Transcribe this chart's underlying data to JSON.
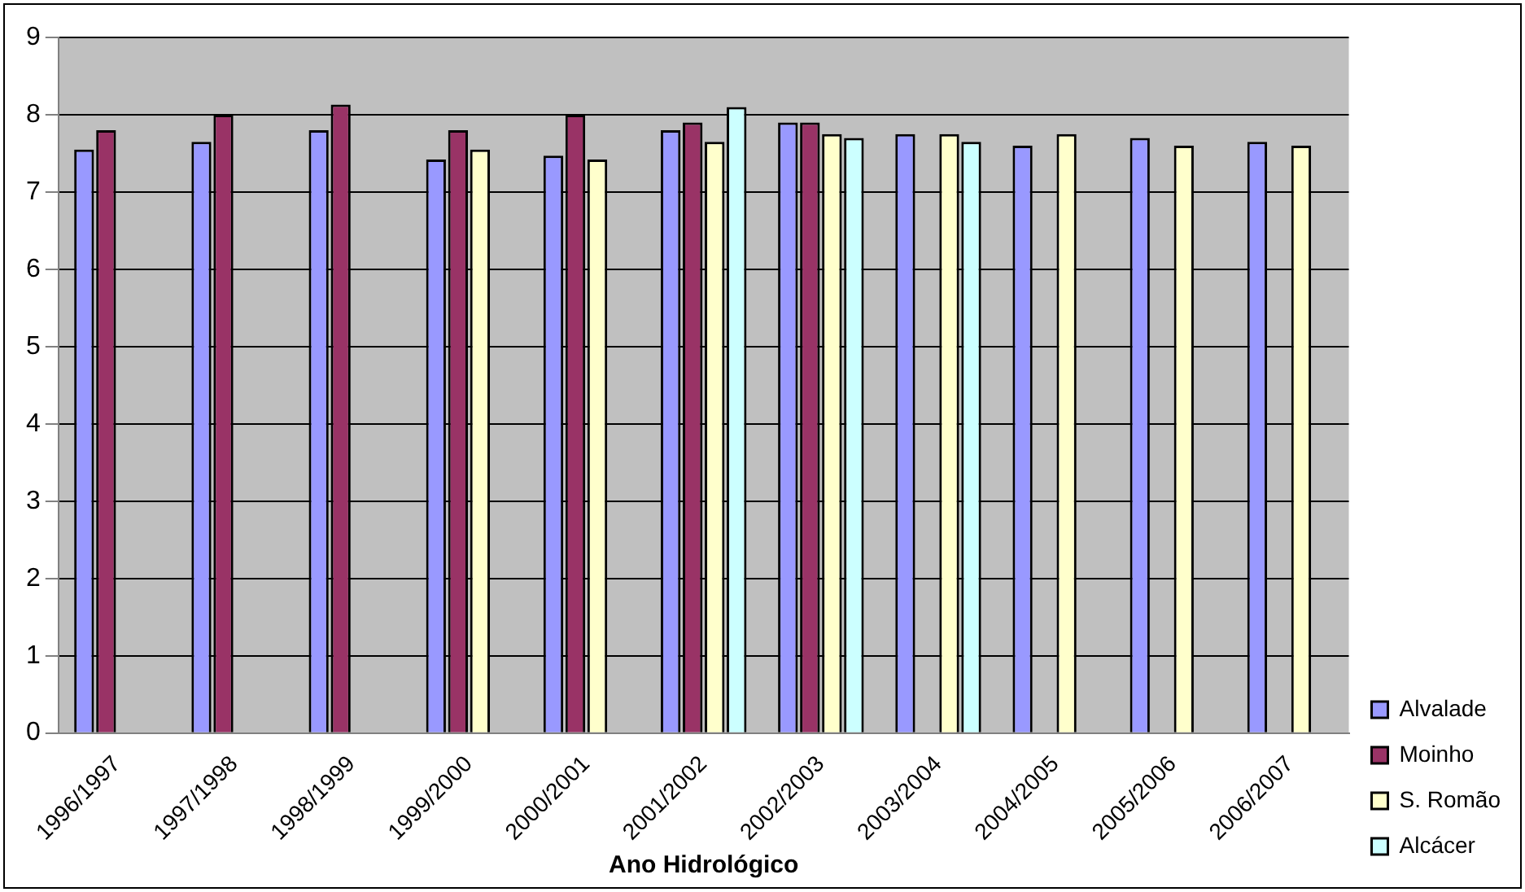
{
  "chart_data": {
    "type": "bar",
    "xlabel": "Ano Hidrológico",
    "categories": [
      "1996/1997",
      "1997/1998",
      "1998/1999",
      "1999/2000",
      "2000/2001",
      "2001/2002",
      "2002/2003",
      "2003/2004",
      "2004/2005",
      "2005/2006",
      "2006/2007"
    ],
    "series": [
      {
        "name": "Alvalade",
        "color": "#9999ff",
        "values": [
          7.55,
          7.65,
          7.8,
          7.42,
          7.47,
          7.8,
          7.9,
          7.75,
          7.6,
          7.7,
          7.65
        ]
      },
      {
        "name": "Moinho",
        "color": "#993366",
        "values": [
          7.8,
          8.0,
          8.13,
          7.8,
          8.0,
          7.9,
          7.9,
          null,
          null,
          null,
          null
        ]
      },
      {
        "name": "S. Romão",
        "color": "#ffffcc",
        "values": [
          null,
          null,
          null,
          7.55,
          7.42,
          7.65,
          7.75,
          7.75,
          7.75,
          7.6,
          7.6
        ]
      },
      {
        "name": "Alcácer",
        "color": "#ccffff",
        "values": [
          null,
          null,
          null,
          null,
          null,
          8.1,
          7.7,
          7.65,
          null,
          null,
          null
        ]
      }
    ],
    "ylim": [
      0,
      9
    ],
    "yticks": [
      0,
      1,
      2,
      3,
      4,
      5,
      6,
      7,
      8,
      9
    ],
    "grid": "y",
    "legend": "right"
  }
}
